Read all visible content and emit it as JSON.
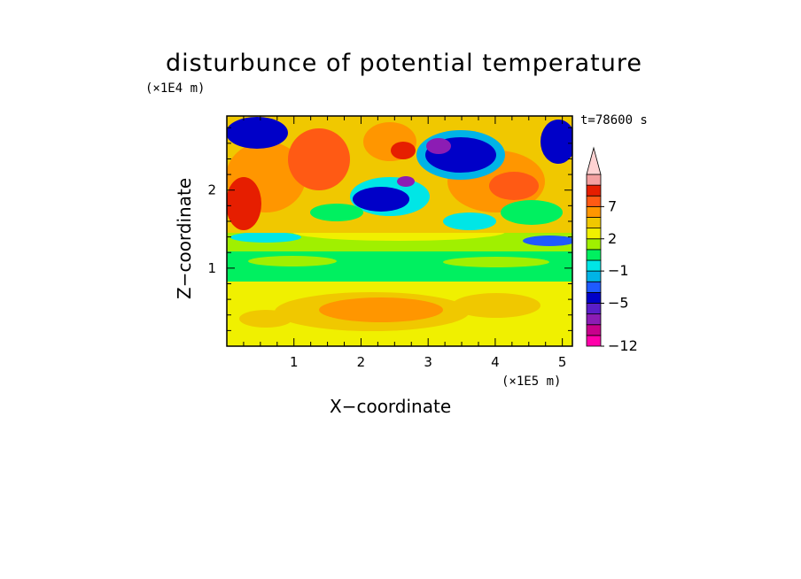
{
  "chart_data": {
    "type": "heatmap",
    "title": "disturbunce of potential temperature",
    "xlabel": "X−coordinate",
    "ylabel": "Z−coordinate",
    "x_scale_label": "(×1E5 m)",
    "z_scale_label": "(×1E4 m)",
    "time_label": "t=78600 s",
    "xlim": [
      0,
      5.15
    ],
    "ylim": [
      0,
      2.95
    ],
    "x_ticks": [
      1,
      2,
      3,
      4,
      5
    ],
    "y_ticks": [
      1,
      2
    ],
    "colorbar": {
      "levels": [
        -12,
        -11,
        -9,
        -7,
        -5,
        -3,
        -2,
        -1,
        0,
        1,
        2,
        3,
        5,
        7,
        9,
        11
      ],
      "tick_labels": [
        {
          "value": 7,
          "label": "7"
        },
        {
          "value": 2,
          "label": "2"
        },
        {
          "value": -1,
          "label": "−1"
        },
        {
          "value": -5,
          "label": "−5"
        },
        {
          "value": -12,
          "label": "−12"
        }
      ],
      "colors": [
        "#ff00aa",
        "#c8008c",
        "#8c1cb4",
        "#5a1ec8",
        "#0000c8",
        "#1e5aff",
        "#00b4e6",
        "#00e6e6",
        "#00f060",
        "#a0f000",
        "#f0f000",
        "#f0c800",
        "#ff9600",
        "#ff5a14",
        "#e61e00",
        "#f4a0a0",
        "#ffd2d2"
      ],
      "extend_max": true
    },
    "field_description": "potential temperature disturbance (K) in x–z plane"
  }
}
